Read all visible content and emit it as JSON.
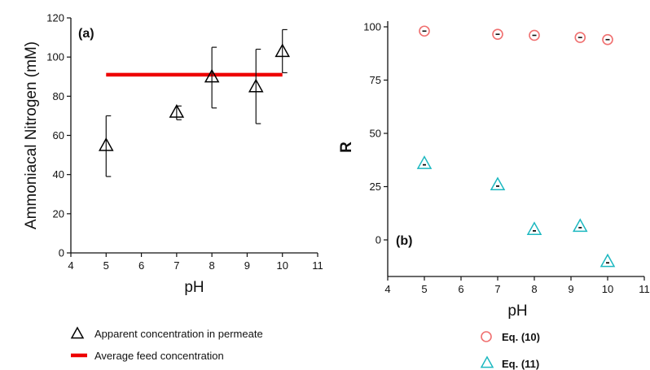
{
  "chart_data": [
    {
      "panel": "(a)",
      "type": "scatter",
      "xlabel": "pH",
      "ylabel": "Ammoniacal Nitrogen (mM)",
      "xlim": [
        4,
        11
      ],
      "ylim": [
        0,
        120
      ],
      "xticks": [
        4,
        5,
        6,
        7,
        8,
        9,
        10,
        11
      ],
      "yticks": [
        0,
        20,
        40,
        60,
        80,
        100,
        120
      ],
      "grid": false,
      "legend_position": "below",
      "series": [
        {
          "name": "Apparent concentration in permeate",
          "marker": "triangle",
          "color": "#000000",
          "points": [
            {
              "x": 5,
              "y": 55,
              "err_low": 39,
              "err_high": 70
            },
            {
              "x": 7,
              "y": 72,
              "err_low": 68,
              "err_high": 75
            },
            {
              "x": 8,
              "y": 90,
              "err_low": 74,
              "err_high": 105
            },
            {
              "x": 9.25,
              "y": 85,
              "err_low": 66,
              "err_high": 104
            },
            {
              "x": 10,
              "y": 103,
              "err_low": 92,
              "err_high": 114
            }
          ]
        },
        {
          "name": "Average feed concentration",
          "type": "line",
          "color": "#ee0000",
          "x": [
            5,
            10
          ],
          "y": [
            91,
            91
          ]
        }
      ]
    },
    {
      "panel": "(b)",
      "type": "scatter",
      "xlabel": "pH",
      "ylabel": "R",
      "xlim": [
        4,
        11
      ],
      "ylim": [
        -15,
        100
      ],
      "xticks": [
        4,
        5,
        6,
        7,
        8,
        9,
        10,
        11
      ],
      "yticks": [
        0,
        25,
        50,
        75,
        100
      ],
      "grid": false,
      "legend_position": "below",
      "series": [
        {
          "name": "Eq. (10)",
          "marker": "circle",
          "color": "#f07070",
          "x": [
            5,
            7,
            8,
            9.25,
            10
          ],
          "y": [
            98,
            96.5,
            96,
            95,
            94
          ]
        },
        {
          "name": "Eq. (11)",
          "marker": "triangle",
          "color": "#1cb8c0",
          "x": [
            5,
            7,
            8,
            9.25,
            10
          ],
          "y": [
            36,
            26,
            5,
            6.5,
            -10
          ]
        }
      ]
    }
  ]
}
